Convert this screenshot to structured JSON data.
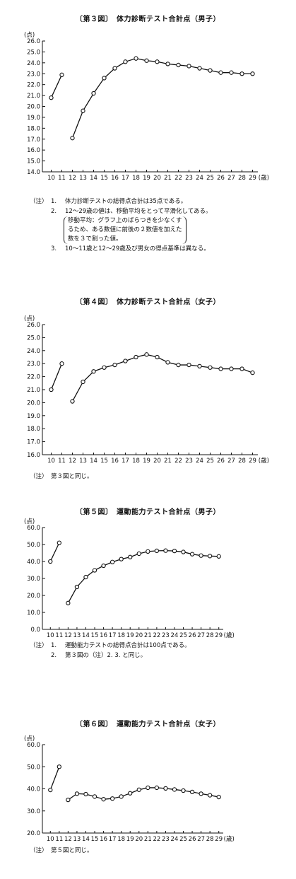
{
  "chart_data": [
    {
      "type": "line",
      "title": "〔第３図〕　体力診断テスト合計点（男子）",
      "ylabel": "(点)",
      "xunit": "(歳)",
      "ylim": [
        14.0,
        26.0
      ],
      "yticks": [
        "14.0",
        "15.0",
        "16.0",
        "17.0",
        "18.0",
        "19.0",
        "20.0",
        "21.0",
        "22.0",
        "23.0",
        "24.0",
        "25.0",
        "26.0"
      ],
      "categories": [
        "10",
        "11",
        "12",
        "13",
        "14",
        "15",
        "16",
        "17",
        "18",
        "19",
        "20",
        "21",
        "22",
        "23",
        "24",
        "25",
        "26",
        "27",
        "28",
        "29"
      ],
      "series": [
        {
          "x": [
            "10",
            "11"
          ],
          "values": [
            20.8,
            22.9
          ]
        },
        {
          "x": [
            "12",
            "13",
            "14",
            "15",
            "16",
            "17",
            "18",
            "19",
            "20",
            "21",
            "22",
            "23",
            "24",
            "25",
            "26",
            "27",
            "28",
            "29"
          ],
          "values": [
            17.1,
            19.6,
            21.2,
            22.6,
            23.5,
            24.1,
            24.4,
            24.2,
            24.1,
            23.9,
            23.8,
            23.7,
            23.5,
            23.3,
            23.1,
            23.1,
            23.0,
            23.0
          ]
        }
      ],
      "notes": [
        {
          "label": "（注）",
          "num": "1.",
          "text": "体力診断テストの総得点合計は35点である。"
        },
        {
          "label": "",
          "num": "2.",
          "text": "12～29歳の値は、移動平均をとって平滑化してある。"
        },
        {
          "box": [
            "移動平均：グラフ上のばらつきを少なくす",
            "るため、ある数値に前後の２数値を加えた",
            "数を３で割った値。"
          ]
        },
        {
          "label": "",
          "num": "3.",
          "text": "10～11歳と12～29歳及び男女の得点基準は異なる。"
        }
      ]
    },
    {
      "type": "line",
      "title": "〔第４図〕　体力診断テスト合計点（女子）",
      "ylabel": "(点)",
      "xunit": "(歳)",
      "ylim": [
        16.0,
        26.0
      ],
      "yticks": [
        "16.0",
        "17.0",
        "18.0",
        "19.0",
        "20.0",
        "21.0",
        "22.0",
        "23.0",
        "24.0",
        "25.0",
        "26.0"
      ],
      "categories": [
        "10",
        "11",
        "12",
        "13",
        "14",
        "15",
        "16",
        "17",
        "18",
        "19",
        "20",
        "21",
        "22",
        "23",
        "24",
        "25",
        "26",
        "27",
        "28",
        "29"
      ],
      "series": [
        {
          "x": [
            "10",
            "11"
          ],
          "values": [
            21.0,
            23.0
          ]
        },
        {
          "x": [
            "12",
            "13",
            "14",
            "15",
            "16",
            "17",
            "18",
            "19",
            "20",
            "21",
            "22",
            "23",
            "24",
            "25",
            "26",
            "27",
            "28",
            "29"
          ],
          "values": [
            20.1,
            21.6,
            22.4,
            22.7,
            22.9,
            23.2,
            23.5,
            23.7,
            23.5,
            23.1,
            22.9,
            22.9,
            22.8,
            22.7,
            22.6,
            22.6,
            22.6,
            22.3
          ]
        }
      ],
      "notes": [
        {
          "label": "（注）",
          "num": "",
          "text": "第３図と同じ。"
        }
      ]
    },
    {
      "type": "line",
      "title": "〔第５図〕　運動能力テスト合計点（男子）",
      "ylabel": "(点)",
      "xunit": "(歳)",
      "ylim": [
        0.0,
        60.0
      ],
      "yticks": [
        "0.0",
        "10.0",
        "20.0",
        "30.0",
        "40.0",
        "50.0",
        "60.0"
      ],
      "categories": [
        "10",
        "11",
        "12",
        "13",
        "14",
        "15",
        "16",
        "17",
        "18",
        "19",
        "20",
        "21",
        "22",
        "23",
        "24",
        "25",
        "26",
        "27",
        "28",
        "29"
      ],
      "series": [
        {
          "x": [
            "10",
            "11"
          ],
          "values": [
            40.0,
            51.0
          ]
        },
        {
          "x": [
            "12",
            "13",
            "14",
            "15",
            "16",
            "17",
            "18",
            "19",
            "20",
            "21",
            "22",
            "23",
            "24",
            "25",
            "26",
            "27",
            "28",
            "29"
          ],
          "values": [
            15.5,
            25.0,
            30.8,
            34.8,
            37.5,
            39.7,
            41.4,
            42.6,
            44.6,
            45.9,
            46.3,
            46.4,
            46.2,
            45.6,
            44.3,
            43.5,
            43.2,
            43.0
          ]
        }
      ],
      "notes": [
        {
          "label": "（注）",
          "num": "1.",
          "text": "運動能力テストの総得点合計は100点である。"
        },
        {
          "label": "",
          "num": "2.",
          "text": "第３図の（注）2. 3. と同じ。"
        }
      ]
    },
    {
      "type": "line",
      "title": "〔第６図〕　運動能力テスト合計点（女子）",
      "ylabel": "(点)",
      "xunit": "(歳)",
      "ylim": [
        20.0,
        60.0
      ],
      "yticks": [
        "20.0",
        "30.0",
        "40.0",
        "50.0",
        "60.0"
      ],
      "categories": [
        "10",
        "11",
        "12",
        "13",
        "14",
        "15",
        "16",
        "17",
        "18",
        "19",
        "20",
        "21",
        "22",
        "23",
        "24",
        "25",
        "26",
        "27",
        "28",
        "29"
      ],
      "series": [
        {
          "x": [
            "10",
            "11"
          ],
          "values": [
            39.5,
            50.0
          ]
        },
        {
          "x": [
            "12",
            "13",
            "14",
            "15",
            "16",
            "17",
            "18",
            "19",
            "20",
            "21",
            "22",
            "23",
            "24",
            "25",
            "26",
            "27",
            "28",
            "29"
          ],
          "values": [
            35.0,
            37.8,
            37.6,
            36.5,
            35.3,
            35.6,
            36.5,
            38.0,
            39.6,
            40.5,
            40.5,
            40.2,
            39.7,
            39.2,
            38.6,
            37.8,
            37.1,
            36.3
          ]
        }
      ],
      "notes": [
        {
          "label": "（注）",
          "num": "",
          "text": "第５図と同じ。"
        }
      ]
    }
  ]
}
